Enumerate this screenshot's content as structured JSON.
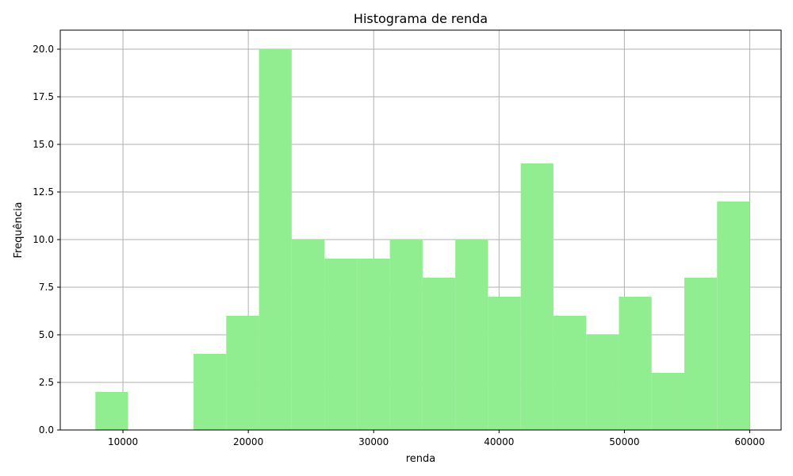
{
  "chart_data": {
    "type": "histogram",
    "title": "Histograma de renda",
    "xlabel": "renda",
    "ylabel": "Frequência",
    "xlim": [
      5000,
      62500
    ],
    "ylim": [
      0,
      21
    ],
    "xticks": [
      10000,
      20000,
      30000,
      40000,
      50000,
      60000
    ],
    "xtick_labels": [
      "10000",
      "20000",
      "30000",
      "40000",
      "50000",
      "60000"
    ],
    "yticks": [
      0,
      2.5,
      5,
      7.5,
      10,
      12.5,
      15,
      17.5,
      20
    ],
    "ytick_labels": [
      "0.0",
      "2.5",
      "5.0",
      "7.5",
      "10.0",
      "12.5",
      "15.0",
      "17.5",
      "20.0"
    ],
    "grid": true,
    "bar_color": "#90ee90",
    "bins": [
      [
        7800,
        10410
      ],
      [
        10410,
        13020
      ],
      [
        13020,
        15630
      ],
      [
        15630,
        18240
      ],
      [
        18240,
        20850
      ],
      [
        20850,
        23460
      ],
      [
        23460,
        26070
      ],
      [
        26070,
        28680
      ],
      [
        28680,
        31290
      ],
      [
        31290,
        33900
      ],
      [
        33900,
        36510
      ],
      [
        36510,
        39120
      ],
      [
        39120,
        41730
      ],
      [
        41730,
        44340
      ],
      [
        44340,
        46950
      ],
      [
        46950,
        49560
      ],
      [
        49560,
        52170
      ],
      [
        52170,
        54780
      ],
      [
        54780,
        57390
      ],
      [
        57390,
        60000
      ]
    ],
    "values": [
      2,
      0,
      0,
      4,
      6,
      20,
      10,
      9,
      9,
      10,
      8,
      10,
      7,
      14,
      6,
      5,
      7,
      3,
      8,
      12
    ]
  }
}
